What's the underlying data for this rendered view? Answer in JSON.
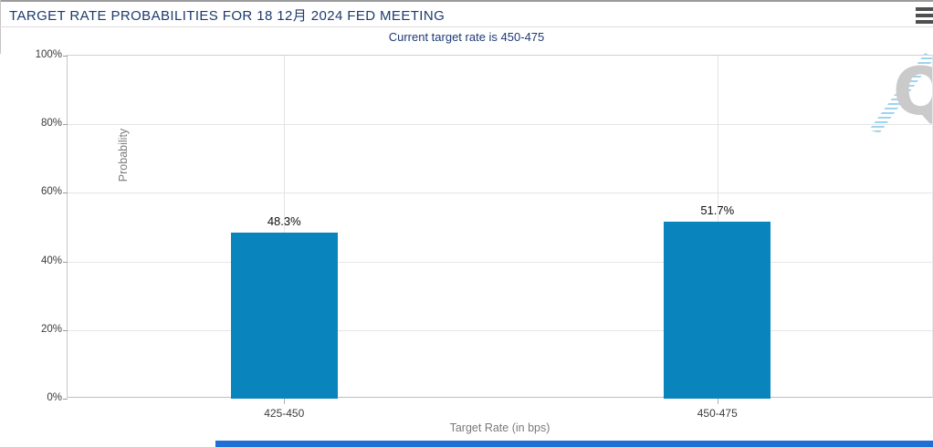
{
  "header": {
    "title": "TARGET RATE PROBABILITIES FOR 18 12月 2024 FED MEETING",
    "subtitle": "Current target rate is 450-475"
  },
  "watermark": {
    "letter": "Q"
  },
  "chart_data": {
    "type": "bar",
    "title": "TARGET RATE PROBABILITIES FOR 18 12月 2024 FED MEETING",
    "subtitle": "Current target rate is 450-475",
    "categories": [
      "425-450",
      "450-475"
    ],
    "values": [
      48.3,
      51.7
    ],
    "bar_labels": [
      "48.3%",
      "51.7%"
    ],
    "xlabel": "Target Rate (in bps)",
    "ylabel": "Probability",
    "ylim": [
      0,
      100
    ],
    "ytick_labels": [
      "0%",
      "20%",
      "40%",
      "60%",
      "80%",
      "100%"
    ],
    "grid": true,
    "legend": false
  },
  "colors": {
    "title_text": "#1c3b6d",
    "subtitle_text": "#1d3a75",
    "bar_fill": "#0a84bc",
    "bottom_strip": "#1f6fd6",
    "menu_icon": "#4f4f4f",
    "watermark_letter": "#cacaca",
    "watermark_hatch": "#9fd4ee"
  }
}
